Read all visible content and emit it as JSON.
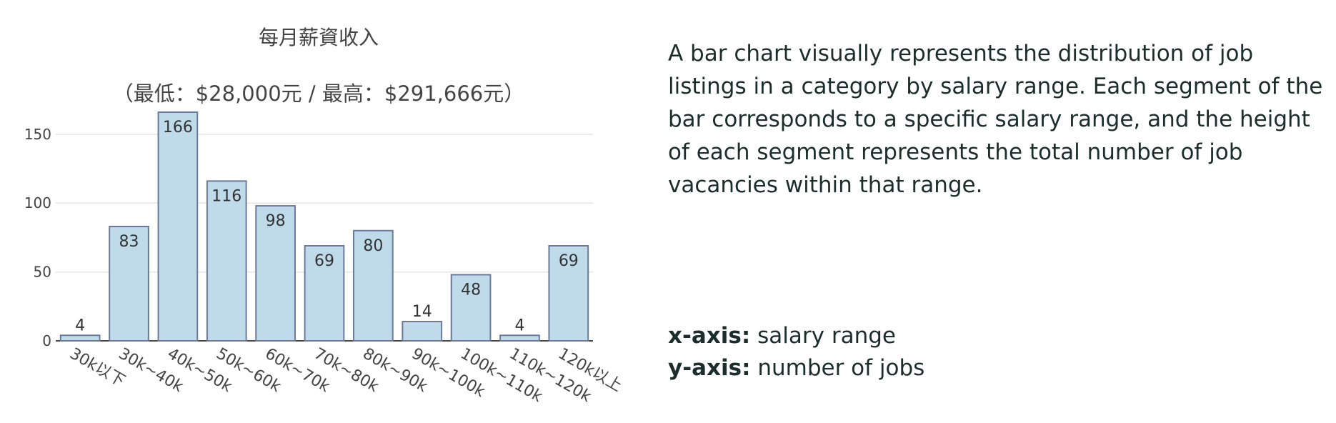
{
  "chart_data": {
    "type": "bar",
    "title": "每月薪資收入",
    "subtitle": "（最低：$28,000元 / 最高：$291,666元）",
    "categories": [
      "30k以下",
      "30k~40k",
      "40k~50k",
      "50k~60k",
      "60k~70k",
      "70k~80k",
      "80k~90k",
      "90k~100k",
      "100k~110k",
      "110k~120k",
      "120k以上"
    ],
    "values": [
      4,
      83,
      166,
      116,
      98,
      69,
      80,
      14,
      48,
      4,
      69
    ],
    "ylim": [
      0,
      166
    ],
    "yticks": [
      0,
      50,
      100,
      150
    ],
    "grid": true,
    "colors": {
      "bar_fill": "#bfdbea",
      "bar_stroke": "#6b7a99"
    }
  },
  "description": "A bar chart visually represents the distribution of job listings in a category by salary range. Each segment of the bar corresponds to a specific salary range, and the height of each segment represents the total number of job vacancies within that range.",
  "axis_notes": {
    "x_key": "x-axis:",
    "x_value": "salary range",
    "y_key": "y-axis:",
    "y_value": "number of jobs"
  }
}
